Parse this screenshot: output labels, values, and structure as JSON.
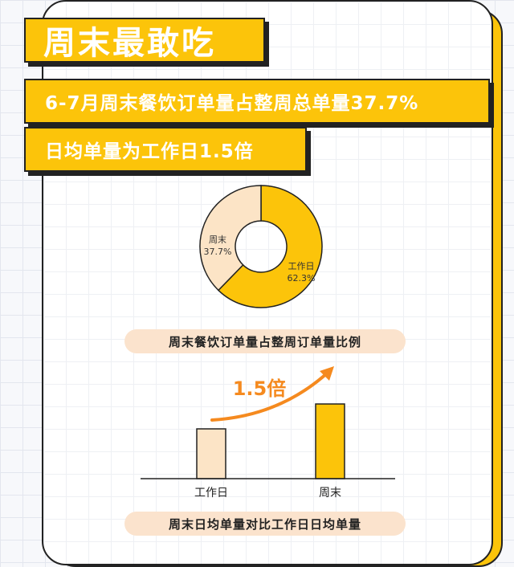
{
  "header": {
    "title": "周末最敢吃",
    "line1": "6-7月周末餐饮订单量占整周总单量37.7%",
    "line2": "日均单量为工作日1.5倍"
  },
  "colors": {
    "accent": "#fcc40a",
    "light": "#fce4c6",
    "caption_bg": "#fbe3cd",
    "arrow": "#f58a1f"
  },
  "chart_data": [
    {
      "type": "pie",
      "title": "周末餐饮订单量占整周订单量比例",
      "slices": [
        {
          "label": "工作日",
          "value_label": "62.3%",
          "value": 62.3,
          "color": "#fcc40a"
        },
        {
          "label": "周末",
          "value_label": "37.7%",
          "value": 37.7,
          "color": "#fce4c6"
        }
      ]
    },
    {
      "type": "bar",
      "title": "周末日均单量对比工作日日均单量",
      "categories": [
        "工作日",
        "周末"
      ],
      "values": [
        1,
        1.5
      ],
      "colors": [
        "#fce4c6",
        "#fcc40a"
      ],
      "annotation": "1.5倍"
    }
  ]
}
